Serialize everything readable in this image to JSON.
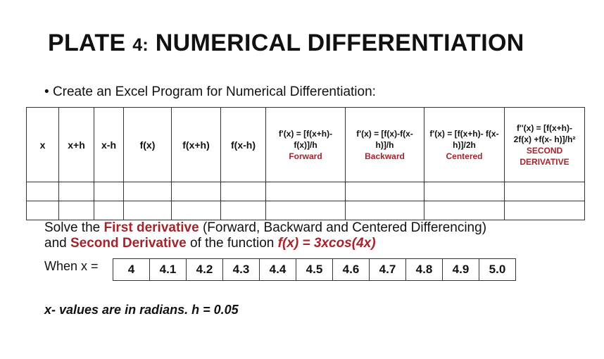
{
  "title": {
    "plate": "PLATE",
    "number": "4:",
    "subject": "NUMERICAL DIFFERENTIATION"
  },
  "instruction": "Create an Excel Program for Numerical Differentiation:",
  "table": {
    "headers": [
      "x",
      "x+h",
      "x-h",
      "f(x)",
      "f(x+h)",
      "f(x-h)"
    ],
    "formula_headers": [
      {
        "formula": "f'(x) = [f(x+h)- f(x)]/h",
        "label": "Forward"
      },
      {
        "formula": "f'(x) = [f(x)-f(x- h)]/h",
        "label": "Backward"
      },
      {
        "formula": "f'(x) = [f(x+h)- f(x-h)]/2h",
        "label": "Centered"
      },
      {
        "formula": "f''(x) = [f(x+h)- 2f(x) +f(x- h)]/h²",
        "label": "SECOND DERIVATIVE"
      }
    ]
  },
  "task": {
    "line1": [
      "Solve the",
      "First derivative",
      "(Forward, Backward and Centered Differencing)"
    ],
    "line2": [
      "and",
      "Second Derivative",
      "of the function",
      "f(x) = 3xcos(4x)"
    ]
  },
  "x_values": {
    "label": "When x =",
    "values": [
      "4",
      "4.1",
      "4.2",
      "4.3",
      "4.4",
      "4.5",
      "4.6",
      "4.7",
      "4.8",
      "4.9",
      "5.0"
    ]
  },
  "note": "x- values are in radians. h = 0.05"
}
